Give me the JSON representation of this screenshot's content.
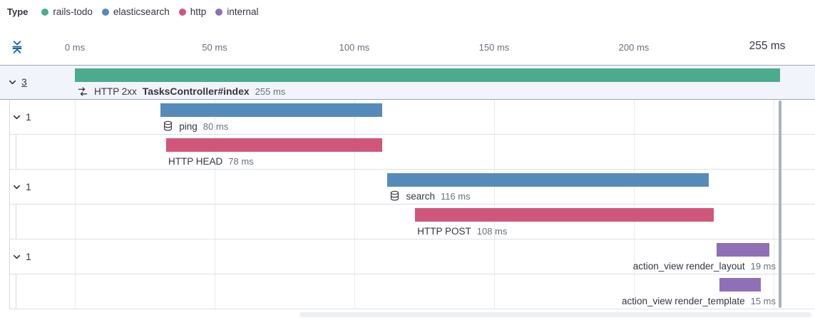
{
  "legend": {
    "title": "Type",
    "items": [
      {
        "label": "rails-todo",
        "color": "#4BAB8D"
      },
      {
        "label": "elasticsearch",
        "color": "#558BBB"
      },
      {
        "label": "http",
        "color": "#D0567A"
      },
      {
        "label": "internal",
        "color": "#8F6FB6"
      }
    ]
  },
  "toolbar": {
    "fold_icon": "fold-vertical-icon",
    "fold_icon_color": "#1765AD"
  },
  "chart_data": {
    "type": "waterfall",
    "unit": "ms",
    "xlim": [
      0,
      255
    ],
    "total_ms": 255,
    "total_label": "255 ms",
    "grid": true,
    "axis_ticks": [
      {
        "ms": 0,
        "label": "0 ms"
      },
      {
        "ms": 50,
        "label": "50 ms"
      },
      {
        "ms": 100,
        "label": "100 ms"
      },
      {
        "ms": 150,
        "label": "150 ms"
      },
      {
        "ms": 200,
        "label": "200 ms"
      }
    ],
    "rows": [
      {
        "kind": "transaction",
        "service": "rails-todo",
        "color": "#4BAB8D",
        "icon": "transaction-icon",
        "chevron_count": "3",
        "count_underlined": true,
        "label_prefix": "HTTP 2xx",
        "label": "TasksController#index",
        "label_bold": true,
        "duration_label": "255 ms",
        "start_ms": 0,
        "duration_ms": 255,
        "highlight": true,
        "indent": 0,
        "label_align": "left"
      },
      {
        "kind": "span",
        "service": "elasticsearch",
        "color": "#558BBB",
        "icon": "database-icon",
        "chevron_count": "1",
        "label": "ping",
        "duration_label": "80 ms",
        "start_ms": 31,
        "duration_ms": 80,
        "indent": 1,
        "label_align": "left"
      },
      {
        "kind": "span",
        "service": "http",
        "color": "#D0567A",
        "icon": null,
        "label": "HTTP HEAD",
        "duration_label": "78 ms",
        "start_ms": 33,
        "duration_ms": 78,
        "indent": 2,
        "label_align": "left"
      },
      {
        "kind": "span",
        "service": "elasticsearch",
        "color": "#558BBB",
        "icon": "database-icon",
        "chevron_count": "1",
        "label": "search",
        "duration_label": "116 ms",
        "start_ms": 113,
        "duration_ms": 116,
        "indent": 1,
        "label_align": "left"
      },
      {
        "kind": "span",
        "service": "http",
        "color": "#D0567A",
        "icon": null,
        "label": "HTTP POST",
        "duration_label": "108 ms",
        "start_ms": 123,
        "duration_ms": 108,
        "indent": 2,
        "label_align": "left"
      },
      {
        "kind": "span",
        "service": "internal",
        "color": "#8F6FB6",
        "icon": null,
        "chevron_count": "1",
        "label": "action_view render_layout",
        "duration_label": "19 ms",
        "start_ms": 232,
        "duration_ms": 19,
        "indent": 1,
        "label_align": "right"
      },
      {
        "kind": "span",
        "service": "internal",
        "color": "#8F6FB6",
        "icon": null,
        "label": "action_view render_template",
        "duration_label": "15 ms",
        "start_ms": 233,
        "duration_ms": 15,
        "indent": 2,
        "label_align": "right"
      }
    ]
  }
}
